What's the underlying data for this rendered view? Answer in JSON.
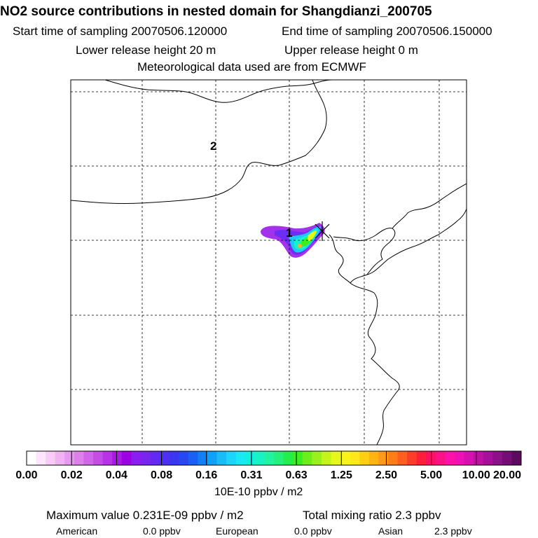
{
  "header": {
    "title": "NO2 source contributions in nested domain for Shangdianzi_200705",
    "start_label": "Start time of sampling 20070506.120000",
    "end_label": "End time of sampling 20070506.150000",
    "lower_label": "Lower release height   20 m",
    "upper_label": "Upper release height    0 m",
    "met_label": "Meteorological data used are from ECMWF"
  },
  "map": {
    "markers": [
      {
        "label": "2"
      },
      {
        "label": "1"
      }
    ],
    "station_symbol": "star-cross-icon"
  },
  "colorbar": {
    "ticks": [
      "0.00",
      "0.02",
      "0.04",
      "0.08",
      "0.16",
      "0.31",
      "0.63",
      "1.25",
      "2.50",
      "5.00",
      "10.00",
      "20.00"
    ],
    "colors": [
      "#ffffff",
      "#fde6fb",
      "#f8ccf6",
      "#f0b2f2",
      "#e699ee",
      "#dd80ea",
      "#d166e8",
      "#c64ce6",
      "#b833e6",
      "#aa1ae4",
      "#9c00e3",
      "#8a1eef",
      "#7a24f0",
      "#6428f2",
      "#4f2ff2",
      "#3a36f4",
      "#2746f4",
      "#1a60f4",
      "#1080f6",
      "#10a0f8",
      "#18bdf8",
      "#1ad6fa",
      "#18eaf4",
      "#10f0e0",
      "#16f4c4",
      "#20f4a0",
      "#22f27a",
      "#22ee4c",
      "#3aee22",
      "#6cee1a",
      "#9cf01a",
      "#c4f418",
      "#e6f818",
      "#f8f418",
      "#ffe818",
      "#ffd010",
      "#ffb410",
      "#ff9a18",
      "#ff7e18",
      "#ff5e20",
      "#ff3c2a",
      "#ff1e3a",
      "#ff1060",
      "#ff1085",
      "#ff10a8",
      "#f010b6",
      "#d810b0",
      "#c010a4",
      "#a4109a",
      "#8c1088",
      "#740e74",
      "#5c0a5c"
    ],
    "units": "10E-10 ppbv / m2"
  },
  "footer": {
    "max_label": "Maximum value  0.231E-09 ppbv / m2",
    "total_label": "Total mixing ratio      2.3 ppbv",
    "american_label": "American",
    "american_value": "0.0 ppbv",
    "european_label": "European",
    "european_value": "0.0 ppbv",
    "asian_label": "Asian",
    "asian_value": "2.3 ppbv"
  }
}
